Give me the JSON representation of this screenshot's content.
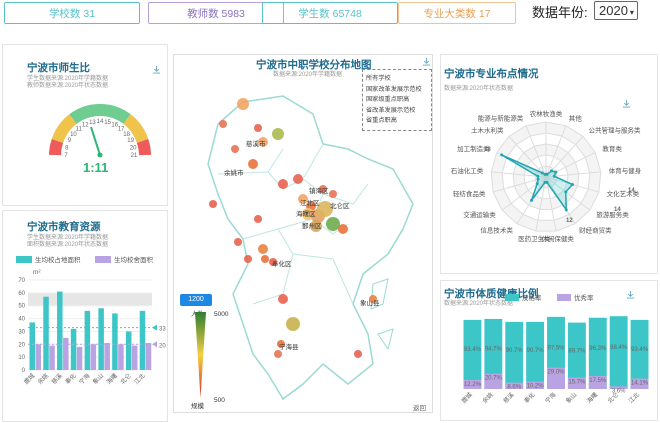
{
  "stats": [
    {
      "label": "学校数 31",
      "color": "#58c2c9"
    },
    {
      "label": "教师数 5983",
      "color": "#b7a0dc"
    },
    {
      "label": "学生数 65748",
      "color": "#58c2c9"
    },
    {
      "label": "专业大类数 17",
      "color": "#f4c28a"
    }
  ],
  "year": {
    "label": "数据年份:",
    "value": "2020"
  },
  "teacher_ratio": {
    "title": "宁波市师生比",
    "src1": "学生数据来源:2020年学籍数据",
    "src2": "教师数据来源:2020年状态数据",
    "value": "1:11",
    "ticks": [
      "7",
      "8",
      "9",
      "10",
      "11",
      "12",
      "13",
      "14",
      "15",
      "16",
      "17",
      "18",
      "19",
      "20",
      "21"
    ]
  },
  "edu_resources": {
    "title": "宁波市教育资源",
    "legend": [
      "生均校占地面积",
      "生均校舍面积"
    ],
    "unit": "m²"
  },
  "map": {
    "title": "宁波市中职学校分布地图",
    "src": "数据来源:2020年学籍数据",
    "filters": [
      "所有学校",
      "国家改革发展示范校",
      "国家级重点职高",
      "省改革发展示范校",
      "省重点职高"
    ],
    "districts": [
      "慈溪市",
      "余姚市",
      "镇海区",
      "江北区",
      "北仑区",
      "海曙区",
      "鄞州区",
      "奉化区",
      "宁海县",
      "象山县"
    ],
    "scale": {
      "value": "1200",
      "label_top": "人数",
      "max": "5000",
      "label_bottom": "规模",
      "min": "500"
    },
    "back": "返回"
  },
  "major": {
    "title": "宁波市专业布点情况",
    "src": "数据来源:2020年状态数据",
    "labels": [
      "农林牧渔类",
      "其他",
      "公共管理与服务类",
      "教育类",
      "体育与健身",
      "文化艺术类",
      "旅游服务类",
      "财经商贸类",
      "休闲保健类",
      "医药卫生类",
      "信息技术类",
      "交通运输类",
      "轻纺食品类",
      "石油化工类",
      "加工制造类",
      "土木水利类",
      "能源与新能源类"
    ],
    "values": [
      1,
      1,
      3,
      4,
      3,
      10,
      9,
      14,
      2,
      2,
      10,
      4,
      3,
      3,
      18,
      2,
      1
    ],
    "axis_ticks": [
      "18",
      "14",
      "14",
      "12"
    ]
  },
  "health": {
    "title": "宁波市体质健康比例",
    "src": "数据来源:2020年状态数据",
    "legend": [
      "及格率",
      "优秀率"
    ],
    "pass": [
      "93.4%",
      "94.7%",
      "90.7%",
      "90.7%",
      "97.5%",
      "89.7%",
      "96.3%",
      "98.4%",
      "93.4%"
    ],
    "excellent": [
      "12.2%",
      "20.7%",
      "8.6%",
      "10.2%",
      "29.0%",
      "15.7%",
      "17.5%",
      "3.6%",
      "14.1%"
    ],
    "districts": [
      "鹿城",
      "余姚",
      "慈溪",
      "奉化",
      "宁海",
      "象山",
      "海曙",
      "北仑",
      "江北"
    ]
  },
  "chart_data": [
    {
      "type": "bar",
      "title": "宁波市教育资源",
      "ylabel": "m²",
      "categories": [
        "鹿城",
        "余姚",
        "慈溪",
        "奉化",
        "宁海",
        "象山",
        "海曙",
        "北仑",
        "江北"
      ],
      "ylim": [
        0,
        70
      ],
      "yticks": [
        "0",
        "10",
        "20",
        "30",
        "40",
        "50",
        "60",
        "70"
      ],
      "mark_values": [
        "33",
        "20"
      ],
      "series": [
        {
          "name": "生均校占地面积",
          "values": [
            37,
            57,
            61,
            32,
            46,
            48,
            44,
            30,
            46
          ]
        },
        {
          "name": "生均校舍面积",
          "values": [
            20,
            19,
            25,
            18,
            20,
            21,
            20,
            19,
            21
          ]
        }
      ]
    },
    {
      "type": "bar",
      "title": "宁波市体质健康比例",
      "categories": [
        "鹿城",
        "余姚",
        "慈溪",
        "奉化",
        "宁海",
        "象山",
        "海曙",
        "北仑",
        "江北"
      ],
      "ylim": [
        0,
        100
      ],
      "series": [
        {
          "name": "及格率",
          "values": [
            93.4,
            94.7,
            90.7,
            90.7,
            97.5,
            89.7,
            96.3,
            98.4,
            93.4
          ]
        },
        {
          "name": "优秀率",
          "values": [
            12.2,
            20.7,
            8.6,
            10.2,
            29.0,
            15.7,
            17.5,
            3.6,
            14.1
          ]
        }
      ]
    }
  ]
}
